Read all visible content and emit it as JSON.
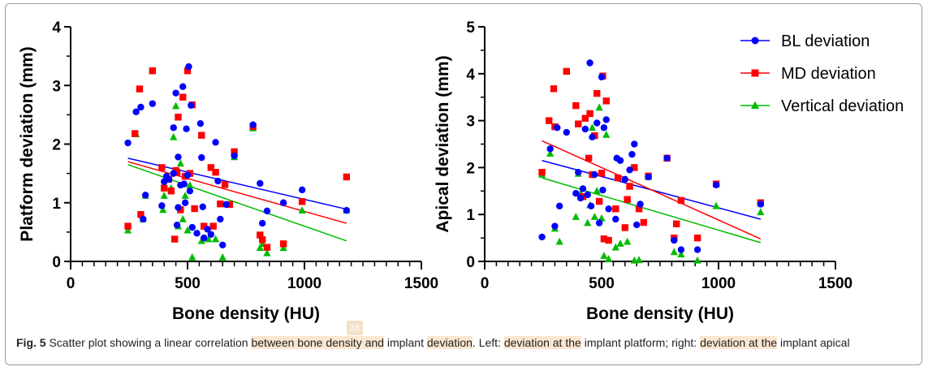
{
  "colors": {
    "bl": "#0000ff",
    "md": "#ff0000",
    "vertical": "#00bb00",
    "axis": "#000000"
  },
  "legend": {
    "items": [
      {
        "label": "BL deviation",
        "color": "#0000ff",
        "marker": "circle"
      },
      {
        "label": "MD deviation",
        "color": "#ff0000",
        "marker": "square"
      },
      {
        "label": "Vertical deviation",
        "color": "#00bb00",
        "marker": "triangle"
      }
    ]
  },
  "chart_data": [
    {
      "type": "scatter",
      "title": "",
      "xlabel": "Bone density (HU)",
      "ylabel": "Platform deviation (mm)",
      "xlim": [
        0,
        1500
      ],
      "ylim": [
        0,
        4
      ],
      "xticks": [
        0,
        500,
        1000,
        1500
      ],
      "yticks": [
        0,
        1,
        2,
        3,
        4
      ],
      "series": [
        {
          "name": "BL deviation",
          "marker": "circle",
          "points": [
            [
              245,
              2.02
            ],
            [
              280,
              2.55
            ],
            [
              300,
              2.63
            ],
            [
              310,
              0.72
            ],
            [
              320,
              1.13
            ],
            [
              350,
              2.69
            ],
            [
              390,
              0.95
            ],
            [
              400,
              1.36
            ],
            [
              410,
              1.45
            ],
            [
              420,
              1.4
            ],
            [
              440,
              1.5
            ],
            [
              440,
              2.28
            ],
            [
              450,
              2.87
            ],
            [
              455,
              0.62
            ],
            [
              460,
              0.92
            ],
            [
              460,
              1.78
            ],
            [
              470,
              1.3
            ],
            [
              480,
              2.98
            ],
            [
              485,
              1.32
            ],
            [
              490,
              1.0
            ],
            [
              495,
              2.26
            ],
            [
              500,
              1.47
            ],
            [
              505,
              3.32
            ],
            [
              510,
              1.2
            ],
            [
              515,
              2.66
            ],
            [
              520,
              0.58
            ],
            [
              540,
              0.48
            ],
            [
              555,
              2.35
            ],
            [
              560,
              1.77
            ],
            [
              565,
              0.93
            ],
            [
              570,
              0.4
            ],
            [
              585,
              0.55
            ],
            [
              600,
              0.46
            ],
            [
              620,
              2.03
            ],
            [
              630,
              1.37
            ],
            [
              640,
              0.72
            ],
            [
              650,
              0.28
            ],
            [
              665,
              0.97
            ],
            [
              700,
              1.8
            ],
            [
              780,
              2.33
            ],
            [
              810,
              1.33
            ],
            [
              820,
              0.65
            ],
            [
              840,
              0.86
            ],
            [
              910,
              1.0
            ],
            [
              990,
              1.22
            ],
            [
              1180,
              0.87
            ]
          ],
          "fit": [
            [
              245,
              1.76
            ],
            [
              1180,
              0.89
            ]
          ]
        },
        {
          "name": "MD deviation",
          "marker": "square",
          "points": [
            [
              245,
              0.6
            ],
            [
              275,
              2.18
            ],
            [
              295,
              2.94
            ],
            [
              300,
              0.8
            ],
            [
              350,
              3.25
            ],
            [
              390,
              1.6
            ],
            [
              400,
              1.25
            ],
            [
              420,
              1.4
            ],
            [
              430,
              1.2
            ],
            [
              445,
              0.38
            ],
            [
              450,
              1.55
            ],
            [
              455,
              1.52
            ],
            [
              460,
              2.46
            ],
            [
              470,
              0.88
            ],
            [
              480,
              2.8
            ],
            [
              490,
              1.45
            ],
            [
              500,
              3.25
            ],
            [
              510,
              1.5
            ],
            [
              520,
              2.67
            ],
            [
              530,
              0.9
            ],
            [
              560,
              2.15
            ],
            [
              570,
              0.6
            ],
            [
              600,
              1.6
            ],
            [
              610,
              0.6
            ],
            [
              620,
              1.52
            ],
            [
              640,
              0.98
            ],
            [
              660,
              1.31
            ],
            [
              680,
              0.97
            ],
            [
              700,
              1.87
            ],
            [
              780,
              2.3
            ],
            [
              810,
              0.45
            ],
            [
              820,
              0.37
            ],
            [
              840,
              0.24
            ],
            [
              910,
              0.3
            ],
            [
              990,
              1.02
            ],
            [
              1180,
              1.44
            ]
          ],
          "fit": [
            [
              245,
              1.7
            ],
            [
              1180,
              0.65
            ]
          ]
        },
        {
          "name": "Vertical deviation",
          "marker": "triangle",
          "points": [
            [
              245,
              0.53
            ],
            [
              280,
              2.17
            ],
            [
              310,
              0.72
            ],
            [
              320,
              1.12
            ],
            [
              395,
              0.88
            ],
            [
              400,
              1.12
            ],
            [
              430,
              1.25
            ],
            [
              440,
              2.12
            ],
            [
              450,
              2.65
            ],
            [
              460,
              0.6
            ],
            [
              470,
              1.67
            ],
            [
              480,
              0.72
            ],
            [
              490,
              1.12
            ],
            [
              500,
              0.53
            ],
            [
              510,
              1.3
            ],
            [
              520,
              0.07
            ],
            [
              560,
              0.35
            ],
            [
              570,
              0.6
            ],
            [
              590,
              0.38
            ],
            [
              620,
              0.38
            ],
            [
              650,
              0.07
            ],
            [
              700,
              1.78
            ],
            [
              780,
              2.27
            ],
            [
              810,
              0.23
            ],
            [
              820,
              0.3
            ],
            [
              840,
              0.14
            ],
            [
              910,
              0.23
            ],
            [
              990,
              0.87
            ],
            [
              1180,
              0.87
            ]
          ],
          "fit": [
            [
              245,
              1.65
            ],
            [
              1180,
              0.35
            ]
          ]
        }
      ]
    },
    {
      "type": "scatter",
      "title": "",
      "xlabel": "Bone density (HU)",
      "ylabel": "Apical deviation (mm)",
      "xlim": [
        0,
        1500
      ],
      "ylim": [
        0,
        5
      ],
      "xticks": [
        0,
        500,
        1000,
        1500
      ],
      "yticks": [
        0,
        1,
        2,
        3,
        4,
        5
      ],
      "series": [
        {
          "name": "BL deviation",
          "marker": "circle",
          "points": [
            [
              245,
              0.52
            ],
            [
              280,
              2.4
            ],
            [
              300,
              0.75
            ],
            [
              310,
              2.85
            ],
            [
              320,
              1.18
            ],
            [
              350,
              2.75
            ],
            [
              390,
              1.45
            ],
            [
              400,
              1.9
            ],
            [
              410,
              1.35
            ],
            [
              420,
              1.55
            ],
            [
              430,
              2.82
            ],
            [
              440,
              1.42
            ],
            [
              450,
              4.23
            ],
            [
              455,
              1.18
            ],
            [
              460,
              2.65
            ],
            [
              470,
              1.85
            ],
            [
              480,
              2.95
            ],
            [
              490,
              0.82
            ],
            [
              500,
              3.93
            ],
            [
              505,
              1.52
            ],
            [
              510,
              2.85
            ],
            [
              520,
              3.02
            ],
            [
              530,
              1.12
            ],
            [
              560,
              0.9
            ],
            [
              565,
              2.2
            ],
            [
              580,
              2.15
            ],
            [
              600,
              1.75
            ],
            [
              620,
              1.95
            ],
            [
              630,
              2.28
            ],
            [
              640,
              2.5
            ],
            [
              650,
              0.78
            ],
            [
              665,
              1.22
            ],
            [
              700,
              1.8
            ],
            [
              780,
              2.2
            ],
            [
              810,
              0.45
            ],
            [
              840,
              0.25
            ],
            [
              910,
              0.25
            ],
            [
              990,
              1.63
            ],
            [
              1180,
              1.22
            ]
          ],
          "fit": [
            [
              245,
              2.15
            ],
            [
              1180,
              0.9
            ]
          ]
        },
        {
          "name": "MD deviation",
          "marker": "square",
          "points": [
            [
              245,
              1.9
            ],
            [
              275,
              3.0
            ],
            [
              295,
              3.68
            ],
            [
              300,
              2.87
            ],
            [
              350,
              4.05
            ],
            [
              390,
              3.32
            ],
            [
              400,
              2.93
            ],
            [
              420,
              1.38
            ],
            [
              430,
              3.05
            ],
            [
              445,
              2.2
            ],
            [
              450,
              3.15
            ],
            [
              460,
              1.85
            ],
            [
              470,
              2.68
            ],
            [
              480,
              3.58
            ],
            [
              490,
              1.28
            ],
            [
              500,
              1.88
            ],
            [
              505,
              3.95
            ],
            [
              510,
              0.48
            ],
            [
              520,
              3.42
            ],
            [
              530,
              0.45
            ],
            [
              560,
              1.12
            ],
            [
              570,
              1.78
            ],
            [
              600,
              0.72
            ],
            [
              610,
              1.32
            ],
            [
              620,
              1.6
            ],
            [
              640,
              2.0
            ],
            [
              660,
              1.12
            ],
            [
              680,
              0.83
            ],
            [
              700,
              1.82
            ],
            [
              780,
              2.2
            ],
            [
              810,
              0.5
            ],
            [
              820,
              0.8
            ],
            [
              840,
              1.3
            ],
            [
              910,
              0.5
            ],
            [
              990,
              1.65
            ],
            [
              1180,
              1.25
            ]
          ],
          "fit": [
            [
              245,
              2.57
            ],
            [
              1180,
              0.48
            ]
          ]
        },
        {
          "name": "Vertical deviation",
          "marker": "triangle",
          "points": [
            [
              245,
              1.85
            ],
            [
              280,
              2.3
            ],
            [
              300,
              0.7
            ],
            [
              320,
              0.42
            ],
            [
              390,
              0.95
            ],
            [
              400,
              1.87
            ],
            [
              410,
              1.45
            ],
            [
              440,
              0.82
            ],
            [
              450,
              1.2
            ],
            [
              460,
              2.85
            ],
            [
              470,
              0.95
            ],
            [
              480,
              1.5
            ],
            [
              490,
              3.28
            ],
            [
              500,
              0.92
            ],
            [
              510,
              0.12
            ],
            [
              520,
              2.7
            ],
            [
              530,
              0.05
            ],
            [
              560,
              0.3
            ],
            [
              580,
              0.38
            ],
            [
              610,
              0.42
            ],
            [
              620,
              1.6
            ],
            [
              640,
              0.02
            ],
            [
              660,
              0.03
            ],
            [
              700,
              1.8
            ],
            [
              780,
              2.2
            ],
            [
              810,
              0.2
            ],
            [
              840,
              0.15
            ],
            [
              910,
              0.02
            ],
            [
              990,
              1.18
            ],
            [
              1180,
              1.05
            ]
          ],
          "fit": [
            [
              245,
              1.78
            ],
            [
              1180,
              0.4
            ]
          ]
        }
      ]
    }
  ],
  "caption": {
    "label": "Fig. 5",
    "segments": [
      {
        "text": " Scatter plot showing a linear correlation ",
        "hl": false
      },
      {
        "text": "between bone density and",
        "hl": true
      },
      {
        "text": " implant ",
        "hl": false
      },
      {
        "text": "deviation",
        "hl": true
      },
      {
        "text": ". Left: ",
        "hl": false
      },
      {
        "text": "deviation at the",
        "hl": true
      },
      {
        "text": " implant platform; right: ",
        "hl": false
      },
      {
        "text": "deviation at the",
        "hl": true
      },
      {
        "text": " implant apical",
        "hl": false
      }
    ]
  },
  "page_number": "16"
}
